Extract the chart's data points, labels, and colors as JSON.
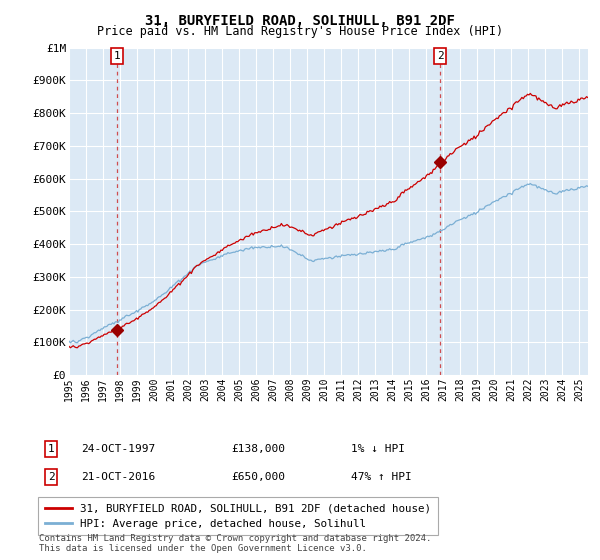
{
  "title": "31, BURYFIELD ROAD, SOLIHULL, B91 2DF",
  "subtitle": "Price paid vs. HM Land Registry's House Price Index (HPI)",
  "background_color": "#ffffff",
  "plot_bg_color": "#dce9f5",
  "hpi_color": "#7bafd4",
  "house_color": "#cc0000",
  "marker_color": "#990000",
  "dashed_color": "#cc3333",
  "ylim": [
    0,
    1000000
  ],
  "yticks": [
    0,
    100000,
    200000,
    300000,
    400000,
    500000,
    600000,
    700000,
    800000,
    900000,
    1000000
  ],
  "ytick_labels": [
    "£0",
    "£100K",
    "£200K",
    "£300K",
    "£400K",
    "£500K",
    "£600K",
    "£700K",
    "£800K",
    "£900K",
    "£1M"
  ],
  "xlim_start": 1995.0,
  "xlim_end": 2025.5,
  "xtick_years": [
    1995,
    1996,
    1997,
    1998,
    1999,
    2000,
    2001,
    2002,
    2003,
    2004,
    2005,
    2006,
    2007,
    2008,
    2009,
    2010,
    2011,
    2012,
    2013,
    2014,
    2015,
    2016,
    2017,
    2018,
    2019,
    2020,
    2021,
    2022,
    2023,
    2024,
    2025
  ],
  "purchase1_x": 1997.81,
  "purchase1_y": 138000,
  "purchase2_x": 2016.81,
  "purchase2_y": 650000,
  "legend_house": "31, BURYFIELD ROAD, SOLIHULL, B91 2DF (detached house)",
  "legend_hpi": "HPI: Average price, detached house, Solihull",
  "note1_num": "1",
  "note1_date": "24-OCT-1997",
  "note1_price": "£138,000",
  "note1_change": "1% ↓ HPI",
  "note2_num": "2",
  "note2_date": "21-OCT-2016",
  "note2_price": "£650,000",
  "note2_change": "47% ↑ HPI",
  "footer": "Contains HM Land Registry data © Crown copyright and database right 2024.\nThis data is licensed under the Open Government Licence v3.0."
}
